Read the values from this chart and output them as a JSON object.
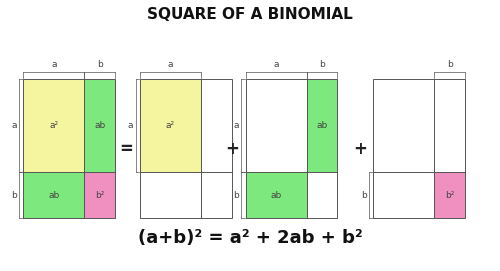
{
  "title": "SQUARE OF A BINOMIAL",
  "formula": "(a+b)² = a² + 2ab + b²",
  "bg_color": "#ffffff",
  "title_fontsize": 11,
  "formula_fontsize": 13,
  "color_yellow": "#f5f5a0",
  "color_green": "#7de87d",
  "color_pink": "#f090c0",
  "color_white": "#ffffff",
  "color_border": "#555555",
  "label_color": "#444444",
  "label_fontsize": 6.5,
  "a_size": 1.1,
  "b_size": 0.55,
  "base_y": 0.62,
  "x_positions": [
    0.42,
    2.52,
    4.42,
    6.72
  ],
  "eq_x": 2.28,
  "plus1_x": 4.18,
  "plus2_x": 6.48,
  "xlim": [
    0,
    9.0
  ],
  "ylim": [
    0,
    3.2
  ]
}
